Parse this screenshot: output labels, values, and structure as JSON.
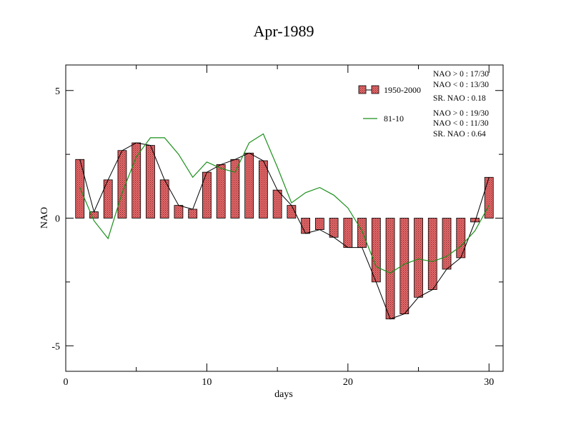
{
  "chart_data": {
    "type": "bar",
    "title": "Apr-1989",
    "xlabel": "days",
    "ylabel": "NAO",
    "xlim": [
      0,
      31
    ],
    "ylim": [
      -6,
      6
    ],
    "xticks": [
      0,
      10,
      20,
      30
    ],
    "yticks": [
      -5,
      0,
      5
    ],
    "x": [
      1,
      2,
      3,
      4,
      5,
      6,
      7,
      8,
      9,
      10,
      11,
      12,
      13,
      14,
      15,
      16,
      17,
      18,
      19,
      20,
      21,
      22,
      23,
      24,
      25,
      26,
      27,
      28,
      29,
      30
    ],
    "series": [
      {
        "name": "1950-2000",
        "kind": "bar+line",
        "color": "#e8696b",
        "values": [
          2.3,
          0.25,
          1.5,
          2.65,
          2.95,
          2.85,
          1.5,
          0.5,
          0.35,
          1.8,
          2.1,
          2.3,
          2.55,
          2.25,
          1.1,
          0.5,
          -0.6,
          -0.45,
          -0.75,
          -1.15,
          -1.15,
          -2.5,
          -3.95,
          -3.75,
          -3.1,
          -2.8,
          -2.0,
          -1.55,
          -0.15,
          1.6
        ],
        "stats": [
          "NAO > 0 :  17/30",
          "NAO < 0 :  13/30",
          "SR. NAO :  0.18"
        ]
      },
      {
        "name": "81-10",
        "kind": "line",
        "color": "#1a8f1a",
        "values": [
          1.2,
          -0.1,
          -0.8,
          1.0,
          2.4,
          3.15,
          3.15,
          2.5,
          1.6,
          2.2,
          1.95,
          1.8,
          2.95,
          3.3,
          2.0,
          0.6,
          1.0,
          1.2,
          0.9,
          0.4,
          -0.5,
          -1.9,
          -2.15,
          -1.8,
          -1.6,
          -1.7,
          -1.5,
          -1.1,
          -0.5,
          0.5
        ],
        "stats": [
          "NAO > 0 :  19/30",
          "NAO < 0 :  11/30",
          "SR. NAO :  0.64"
        ]
      }
    ]
  }
}
